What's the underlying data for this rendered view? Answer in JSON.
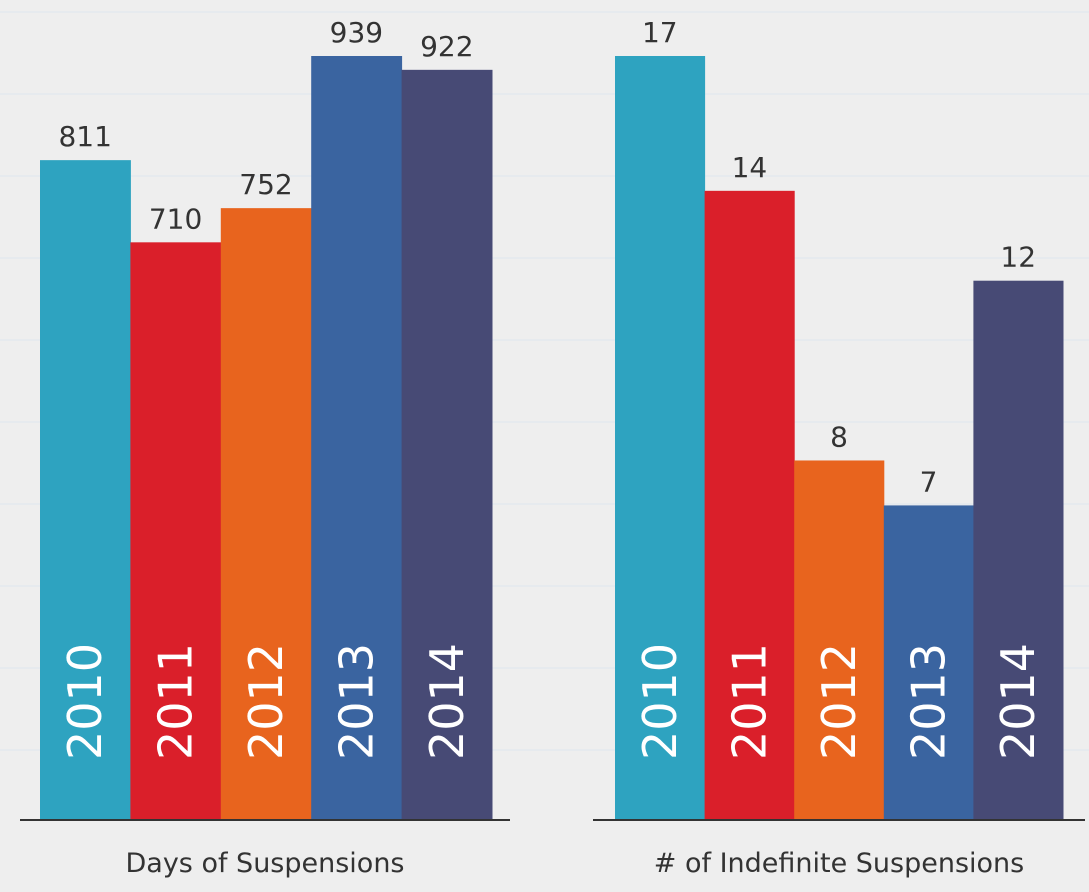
{
  "chart_data": [
    {
      "type": "bar",
      "title": "Days of Suspensions",
      "categories": [
        "2010",
        "2011",
        "2012",
        "2013",
        "2014"
      ],
      "values": [
        811,
        710,
        752,
        939,
        922
      ],
      "colors": [
        "#2ea3c0",
        "#da1f2a",
        "#e8641e",
        "#3a64a0",
        "#474a75"
      ]
    },
    {
      "type": "bar",
      "title": "# of Indefinite Suspensions",
      "categories": [
        "2010",
        "2011",
        "2012",
        "2013",
        "2014"
      ],
      "values": [
        17,
        14,
        8,
        7,
        12
      ],
      "colors": [
        "#2ea3c0",
        "#da1f2a",
        "#e8641e",
        "#3a64a0",
        "#474a75"
      ]
    }
  ]
}
